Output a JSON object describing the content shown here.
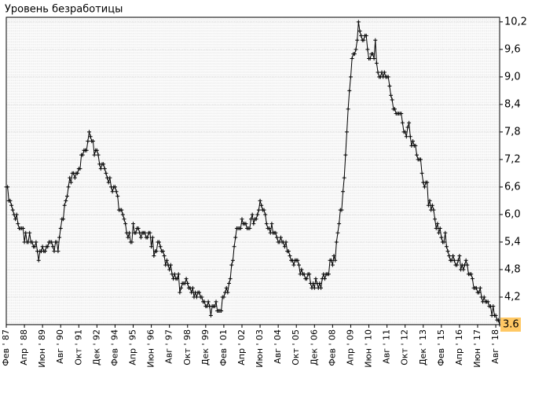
{
  "chart_data": {
    "type": "line",
    "title": "Уровень безработицы",
    "categories": [
      "Фев ' 87",
      null,
      null,
      null,
      null,
      null,
      null,
      null,
      null,
      null,
      null,
      null,
      null,
      null,
      "Апр ' 88",
      null,
      null,
      null,
      null,
      null,
      null,
      null,
      null,
      null,
      null,
      null,
      null,
      null,
      "Июн ' 89",
      null,
      null,
      null,
      null,
      null,
      null,
      null,
      null,
      null,
      null,
      null,
      null,
      null,
      "Авг ' 90",
      null,
      null,
      null,
      null,
      null,
      null,
      null,
      null,
      null,
      null,
      null,
      null,
      null,
      "Окт ' 91",
      null,
      null,
      null,
      null,
      null,
      null,
      null,
      null,
      null,
      null,
      null,
      null,
      null,
      "Дек ' 92",
      null,
      null,
      null,
      null,
      null,
      null,
      null,
      null,
      null,
      null,
      null,
      null,
      null,
      "Фев ' 94",
      null,
      null,
      null,
      null,
      null,
      null,
      null,
      null,
      null,
      null,
      null,
      null,
      null,
      "Апр ' 95",
      null,
      null,
      null,
      null,
      null,
      null,
      null,
      null,
      null,
      null,
      null,
      null,
      null,
      "Июн ' 96",
      null,
      null,
      null,
      null,
      null,
      null,
      null,
      null,
      null,
      null,
      null,
      null,
      null,
      "Авг ' 97",
      null,
      null,
      null,
      null,
      null,
      null,
      null,
      null,
      null,
      null,
      null,
      null,
      null,
      "Окт ' 98",
      null,
      null,
      null,
      null,
      null,
      null,
      null,
      null,
      null,
      null,
      null,
      null,
      null,
      "Дек ' 99",
      null,
      null,
      null,
      null,
      null,
      null,
      null,
      null,
      null,
      null,
      null,
      null,
      null,
      "Фев ' 01",
      null,
      null,
      null,
      null,
      null,
      null,
      null,
      null,
      null,
      null,
      null,
      null,
      null,
      "Апр ' 02",
      null,
      null,
      null,
      null,
      null,
      null,
      null,
      null,
      null,
      null,
      null,
      null,
      null,
      "Июн ' 03",
      null,
      null,
      null,
      null,
      null,
      null,
      null,
      null,
      null,
      null,
      null,
      null,
      null,
      "Авг ' 04",
      null,
      null,
      null,
      null,
      null,
      null,
      null,
      null,
      null,
      null,
      null,
      null,
      null,
      "Окт ' 05",
      null,
      null,
      null,
      null,
      null,
      null,
      null,
      null,
      null,
      null,
      null,
      null,
      null,
      "Дек ' 06",
      null,
      null,
      null,
      null,
      null,
      null,
      null,
      null,
      null,
      null,
      null,
      null,
      null,
      "Фев ' 08",
      null,
      null,
      null,
      null,
      null,
      null,
      null,
      null,
      null,
      null,
      null,
      null,
      null,
      "Апр ' 09",
      null,
      null,
      null,
      null,
      null,
      null,
      null,
      null,
      null,
      null,
      null,
      null,
      null,
      "Июн ' 10",
      null,
      null,
      null,
      null,
      null,
      null,
      null,
      null,
      null,
      null,
      null,
      null,
      null,
      "Авг ' 11",
      null,
      null,
      null,
      null,
      null,
      null,
      null,
      null,
      null,
      null,
      null,
      null,
      null,
      "Окт ' 12",
      null,
      null,
      null,
      null,
      null,
      null,
      null,
      null,
      null,
      null,
      null,
      null,
      null,
      "Дек ' 13",
      null,
      null,
      null,
      null,
      null,
      null,
      null,
      null,
      null,
      null,
      null,
      null,
      null,
      "Фев ' 15",
      null,
      null,
      null,
      null,
      null,
      null,
      null,
      null,
      null,
      null,
      null,
      null,
      null,
      "Апр ' 16",
      null,
      null,
      null,
      null,
      null,
      null,
      null,
      null,
      null,
      null,
      null,
      null,
      null,
      "Июн ' 17",
      null,
      null,
      null,
      null,
      null,
      null,
      null,
      null,
      null,
      null,
      null,
      null,
      null,
      "Авг ' 18",
      null,
      null,
      null
    ],
    "series": [
      {
        "color": "#000000",
        "values": [
          6.6,
          6.6,
          6.3,
          6.3,
          6.2,
          6.1,
          6.0,
          5.9,
          6.0,
          5.8,
          5.7,
          5.7,
          5.7,
          5.7,
          5.4,
          5.6,
          5.4,
          5.4,
          5.6,
          5.4,
          5.4,
          5.3,
          5.3,
          5.4,
          5.2,
          5.0,
          5.2,
          5.2,
          5.3,
          5.2,
          5.2,
          5.3,
          5.3,
          5.4,
          5.4,
          5.4,
          5.3,
          5.2,
          5.4,
          5.4,
          5.2,
          5.5,
          5.7,
          5.9,
          5.9,
          6.2,
          6.3,
          6.4,
          6.6,
          6.8,
          6.7,
          6.9,
          6.9,
          6.8,
          6.9,
          6.9,
          7.0,
          7.0,
          7.3,
          7.3,
          7.4,
          7.4,
          7.4,
          7.6,
          7.8,
          7.7,
          7.6,
          7.6,
          7.3,
          7.4,
          7.4,
          7.3,
          7.1,
          7.0,
          7.1,
          7.1,
          7.0,
          6.9,
          6.8,
          6.7,
          6.8,
          6.6,
          6.5,
          6.6,
          6.6,
          6.5,
          6.4,
          6.1,
          6.1,
          6.1,
          6.0,
          5.9,
          5.8,
          5.6,
          5.5,
          5.6,
          5.4,
          5.4,
          5.8,
          5.6,
          5.6,
          5.7,
          5.7,
          5.6,
          5.5,
          5.6,
          5.6,
          5.6,
          5.5,
          5.5,
          5.6,
          5.6,
          5.3,
          5.5,
          5.1,
          5.2,
          5.2,
          5.4,
          5.4,
          5.3,
          5.2,
          5.2,
          5.1,
          4.9,
          5.0,
          4.9,
          4.8,
          4.9,
          4.7,
          4.6,
          4.7,
          4.6,
          4.6,
          4.7,
          4.3,
          4.4,
          4.5,
          4.5,
          4.5,
          4.6,
          4.5,
          4.4,
          4.4,
          4.3,
          4.4,
          4.2,
          4.3,
          4.2,
          4.3,
          4.3,
          4.2,
          4.2,
          4.1,
          4.1,
          4.0,
          4.0,
          4.1,
          4.0,
          3.8,
          4.0,
          4.0,
          4.0,
          4.1,
          3.9,
          3.9,
          3.9,
          3.9,
          4.2,
          4.2,
          4.3,
          4.4,
          4.3,
          4.5,
          4.6,
          4.9,
          5.0,
          5.3,
          5.5,
          5.7,
          5.7,
          5.7,
          5.7,
          5.9,
          5.8,
          5.8,
          5.8,
          5.7,
          5.7,
          5.7,
          5.9,
          6.0,
          5.8,
          5.9,
          5.9,
          6.0,
          6.1,
          6.3,
          6.2,
          6.1,
          6.1,
          6.0,
          5.8,
          5.7,
          5.7,
          5.6,
          5.8,
          5.6,
          5.6,
          5.6,
          5.5,
          5.4,
          5.4,
          5.5,
          5.4,
          5.4,
          5.3,
          5.4,
          5.2,
          5.2,
          5.1,
          5.0,
          5.0,
          4.9,
          5.0,
          5.0,
          5.0,
          4.9,
          4.7,
          4.8,
          4.7,
          4.7,
          4.6,
          4.6,
          4.7,
          4.7,
          4.5,
          4.4,
          4.5,
          4.4,
          4.6,
          4.5,
          4.4,
          4.5,
          4.4,
          4.6,
          4.7,
          4.6,
          4.7,
          4.7,
          4.7,
          5.0,
          5.0,
          4.9,
          5.1,
          5.0,
          5.4,
          5.6,
          5.8,
          6.1,
          6.1,
          6.5,
          6.8,
          7.3,
          7.8,
          8.3,
          8.7,
          9.0,
          9.4,
          9.5,
          9.5,
          9.6,
          9.8,
          10.2,
          10.0,
          9.9,
          9.8,
          9.8,
          9.9,
          9.9,
          9.6,
          9.4,
          9.4,
          9.5,
          9.5,
          9.4,
          9.8,
          9.3,
          9.1,
          9.0,
          9.0,
          9.1,
          9.0,
          9.1,
          9.0,
          9.0,
          9.0,
          8.8,
          8.6,
          8.5,
          8.3,
          8.3,
          8.2,
          8.2,
          8.2,
          8.2,
          8.2,
          8.0,
          7.8,
          7.8,
          7.7,
          7.9,
          8.0,
          7.7,
          7.5,
          7.6,
          7.5,
          7.5,
          7.3,
          7.2,
          7.2,
          7.2,
          6.9,
          6.7,
          6.6,
          6.7,
          6.7,
          6.2,
          6.3,
          6.1,
          6.2,
          6.1,
          5.9,
          5.7,
          5.8,
          5.6,
          5.7,
          5.5,
          5.4,
          5.4,
          5.6,
          5.3,
          5.2,
          5.1,
          5.0,
          5.0,
          5.1,
          5.0,
          4.9,
          4.9,
          5.0,
          5.1,
          4.8,
          4.9,
          4.8,
          4.9,
          5.0,
          4.9,
          4.7,
          4.7,
          4.7,
          4.6,
          4.4,
          4.4,
          4.4,
          4.3,
          4.3,
          4.4,
          4.2,
          4.1,
          4.2,
          4.1,
          4.1,
          4.1,
          4.0,
          4.0,
          3.8,
          4.0,
          3.8,
          3.8,
          3.7,
          3.7,
          3.6
        ]
      }
    ],
    "ylim": [
      3.6,
      10.3
    ],
    "yticks": [
      {
        "value": 4.2,
        "label": "4,2"
      },
      {
        "value": 4.8,
        "label": "4,8"
      },
      {
        "value": 5.4,
        "label": "5,4"
      },
      {
        "value": 6.0,
        "label": "6,0"
      },
      {
        "value": 6.6,
        "label": "6,6"
      },
      {
        "value": 7.2,
        "label": "7,2"
      },
      {
        "value": 7.8,
        "label": "7,8"
      },
      {
        "value": 8.4,
        "label": "8,4"
      },
      {
        "value": 9.0,
        "label": "9,0"
      },
      {
        "value": 9.6,
        "label": "9,6"
      },
      {
        "value": 10.2,
        "label": "10,2"
      }
    ],
    "grid": true
  }
}
